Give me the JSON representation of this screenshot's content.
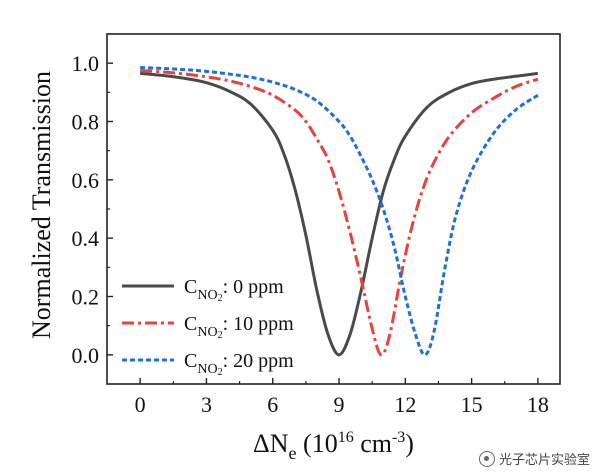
{
  "chart_data": {
    "type": "line",
    "title": "",
    "xlabel": {
      "base": "ΔN",
      "sub": "e",
      "rest": " (10",
      "sup": "16",
      "rest2": " cm",
      "sup2": "-3",
      "end": ")"
    },
    "ylabel": "Normalized Transmission",
    "xlim": [
      -1.5,
      19
    ],
    "ylim": [
      -0.1,
      1.1
    ],
    "xticks": [
      "0",
      "3",
      "6",
      "9",
      "12",
      "15",
      "18"
    ],
    "xtick_values": [
      0,
      3,
      6,
      9,
      12,
      15,
      18
    ],
    "yticks": [
      "0.0",
      "0.2",
      "0.4",
      "0.6",
      "0.8",
      "1.0"
    ],
    "ytick_values": [
      0,
      0.2,
      0.4,
      0.6,
      0.8,
      1.0
    ],
    "grid": false,
    "legend_position": "bottom-left",
    "series": [
      {
        "legend": {
          "main": "C",
          "sub": "NO",
          "subsub": "2",
          "rest": ": 0 ppm"
        },
        "color": "#4a4a4a",
        "dash": "solid",
        "x": [
          0,
          1,
          2,
          3,
          4,
          5,
          6,
          6.5,
          7,
          7.5,
          8,
          8.5,
          9,
          9.5,
          10,
          10.5,
          11,
          11.5,
          12,
          13,
          14,
          15,
          16,
          17,
          18
        ],
        "y": [
          0.965,
          0.958,
          0.948,
          0.933,
          0.905,
          0.86,
          0.77,
          0.69,
          0.57,
          0.41,
          0.22,
          0.07,
          0.0,
          0.07,
          0.22,
          0.4,
          0.56,
          0.67,
          0.75,
          0.85,
          0.9,
          0.93,
          0.945,
          0.955,
          0.965
        ]
      },
      {
        "legend": {
          "main": "C",
          "sub": "NO",
          "subsub": "2",
          "rest": ": 10 ppm"
        },
        "color": "#e8413f",
        "dash": "dashdot",
        "x": [
          0,
          1,
          2,
          3,
          4,
          5,
          6,
          7,
          7.5,
          8,
          8.5,
          9,
          9.5,
          10,
          10.5,
          10.9,
          11.3,
          11.8,
          12.3,
          12.8,
          13.3,
          14,
          15,
          16,
          17,
          18
        ],
        "y": [
          0.975,
          0.97,
          0.963,
          0.953,
          0.94,
          0.92,
          0.89,
          0.84,
          0.8,
          0.74,
          0.67,
          0.56,
          0.42,
          0.26,
          0.09,
          0.0,
          0.07,
          0.27,
          0.44,
          0.57,
          0.66,
          0.75,
          0.83,
          0.88,
          0.92,
          0.945
        ]
      },
      {
        "legend": {
          "main": "C",
          "sub": "NO",
          "subsub": "2",
          "rest": ": 20 ppm"
        },
        "color": "#1f6fd6",
        "dash": "dotted",
        "x": [
          0,
          1,
          2,
          3,
          4,
          5,
          6,
          7,
          8,
          9,
          9.5,
          10,
          10.5,
          11,
          11.5,
          12,
          12.5,
          12.9,
          13.3,
          13.8,
          14.3,
          15,
          16,
          17,
          18
        ],
        "y": [
          0.985,
          0.982,
          0.978,
          0.972,
          0.963,
          0.952,
          0.935,
          0.91,
          0.87,
          0.8,
          0.75,
          0.68,
          0.6,
          0.5,
          0.37,
          0.2,
          0.06,
          0.0,
          0.08,
          0.3,
          0.48,
          0.63,
          0.76,
          0.84,
          0.89
        ]
      }
    ]
  },
  "watermark": {
    "text": "光子芯片实验室",
    "icon": "wechat-channel-icon"
  }
}
